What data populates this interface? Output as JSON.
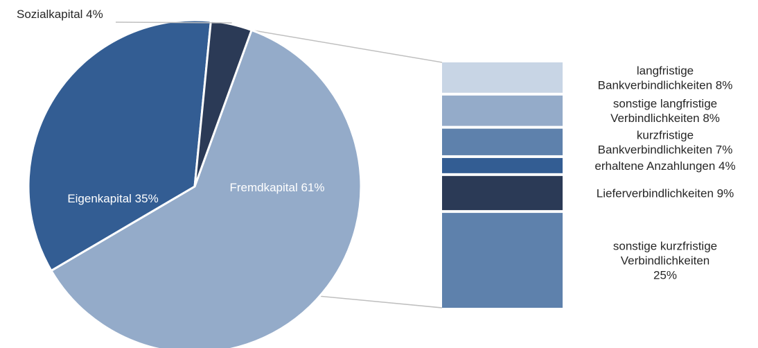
{
  "chart_data": {
    "type": "pie",
    "title": "",
    "pie": {
      "slices": [
        {
          "label": "Fremdkapital 61%",
          "value": 61,
          "color": "#94abc9"
        },
        {
          "label": "Eigenkapital 35%",
          "value": 35,
          "color": "#335d93"
        },
        {
          "label": "Sozialkapital 4%",
          "value": 4,
          "color": "#2b3a56"
        }
      ]
    },
    "breakdown": {
      "of": "Fremdkapital",
      "segments": [
        {
          "label_lines": [
            "langfristige",
            "Bankverbindlichkeiten 8%"
          ],
          "value": 8,
          "color": "#c8d5e5"
        },
        {
          "label_lines": [
            "sonstige langfristige",
            "Verbindlichkeiten 8%"
          ],
          "value": 8,
          "color": "#94abc9"
        },
        {
          "label_lines": [
            "kurzfristige",
            "Bankverbindlichkeiten 7%"
          ],
          "value": 7,
          "color": "#5e81ac"
        },
        {
          "label_lines": [
            "erhaltene Anzahlungen 4%"
          ],
          "value": 4,
          "color": "#335d93"
        },
        {
          "label_lines": [
            "Lieferverbindlichkeiten 9%"
          ],
          "value": 9,
          "color": "#2b3a56"
        },
        {
          "label_lines": [
            "sonstige kurzfristige",
            "Verbindlichkeiten",
            "25%"
          ],
          "value": 25,
          "color": "#5e81ac"
        }
      ]
    }
  }
}
